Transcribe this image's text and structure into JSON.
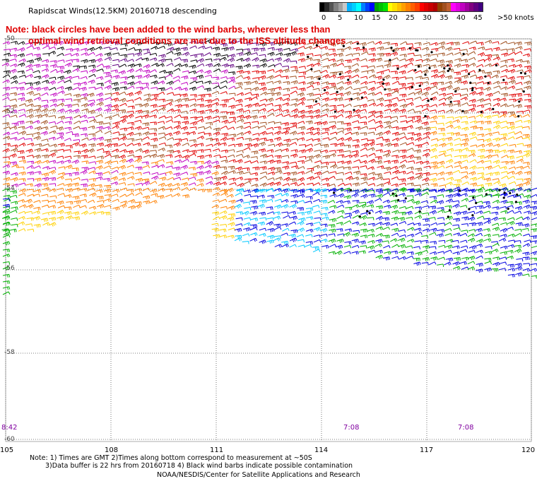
{
  "header": {
    "title": "Rapidscat Winds(12.5KM) 20160718 descending"
  },
  "note": {
    "line1": "Note: black circles have been added to the wind barbs, wherever less than",
    "line2": "optimal wind retrieval conditions are met due to the ISS altitude changes"
  },
  "legend": {
    "labels": [
      "0",
      "5",
      "10",
      "15",
      "20",
      "25",
      "30",
      "35",
      "40",
      "45",
      ">50 knots"
    ],
    "colors": [
      "#000000",
      "#2a2a2a",
      "#555555",
      "#808080",
      "#a0a0a0",
      "#c8c8c8",
      "#00b0ff",
      "#00d0ff",
      "#00ffff",
      "#0080ff",
      "#0040ff",
      "#0000ff",
      "#00a000",
      "#00c000",
      "#00e000",
      "#ffff00",
      "#ffe000",
      "#ffc000",
      "#ffa000",
      "#ff8000",
      "#ff6000",
      "#ff4000",
      "#ff0000",
      "#e00000",
      "#c80000",
      "#b00000",
      "#904000",
      "#a05020",
      "#c06030",
      "#ff00ff",
      "#e000e0",
      "#c000c0",
      "#a000a0",
      "#800080",
      "#600080",
      "#400080"
    ]
  },
  "axes": {
    "lat_labels": [
      "-50",
      "-52",
      "-54",
      "-56",
      "-58",
      "-60"
    ],
    "lon_labels": [
      "105",
      "108",
      "111",
      "114",
      "117",
      "120"
    ]
  },
  "times": [
    "8:42",
    "7:08",
    "7:08"
  ],
  "footer": {
    "line1": "Note: 1) Times are GMT 2)Times along bottom correspond to measurement at ~50S",
    "line2": "3)Data buffer is 22 hrs from 20160718 4) Black wind barbs indicate possible contamination",
    "line3": "NOAA/NESDIS/Center for Satellite Applications and Research"
  },
  "barb_colors": {
    "purple": "#c000c0",
    "dark_purple": "#600080",
    "black": "#000000",
    "brown": "#a05020",
    "red": "#e00000",
    "orange": "#ff8000",
    "yellow": "#ffd000",
    "green": "#00b000",
    "cyan": "#00c8ff",
    "blue": "#0000e0"
  }
}
